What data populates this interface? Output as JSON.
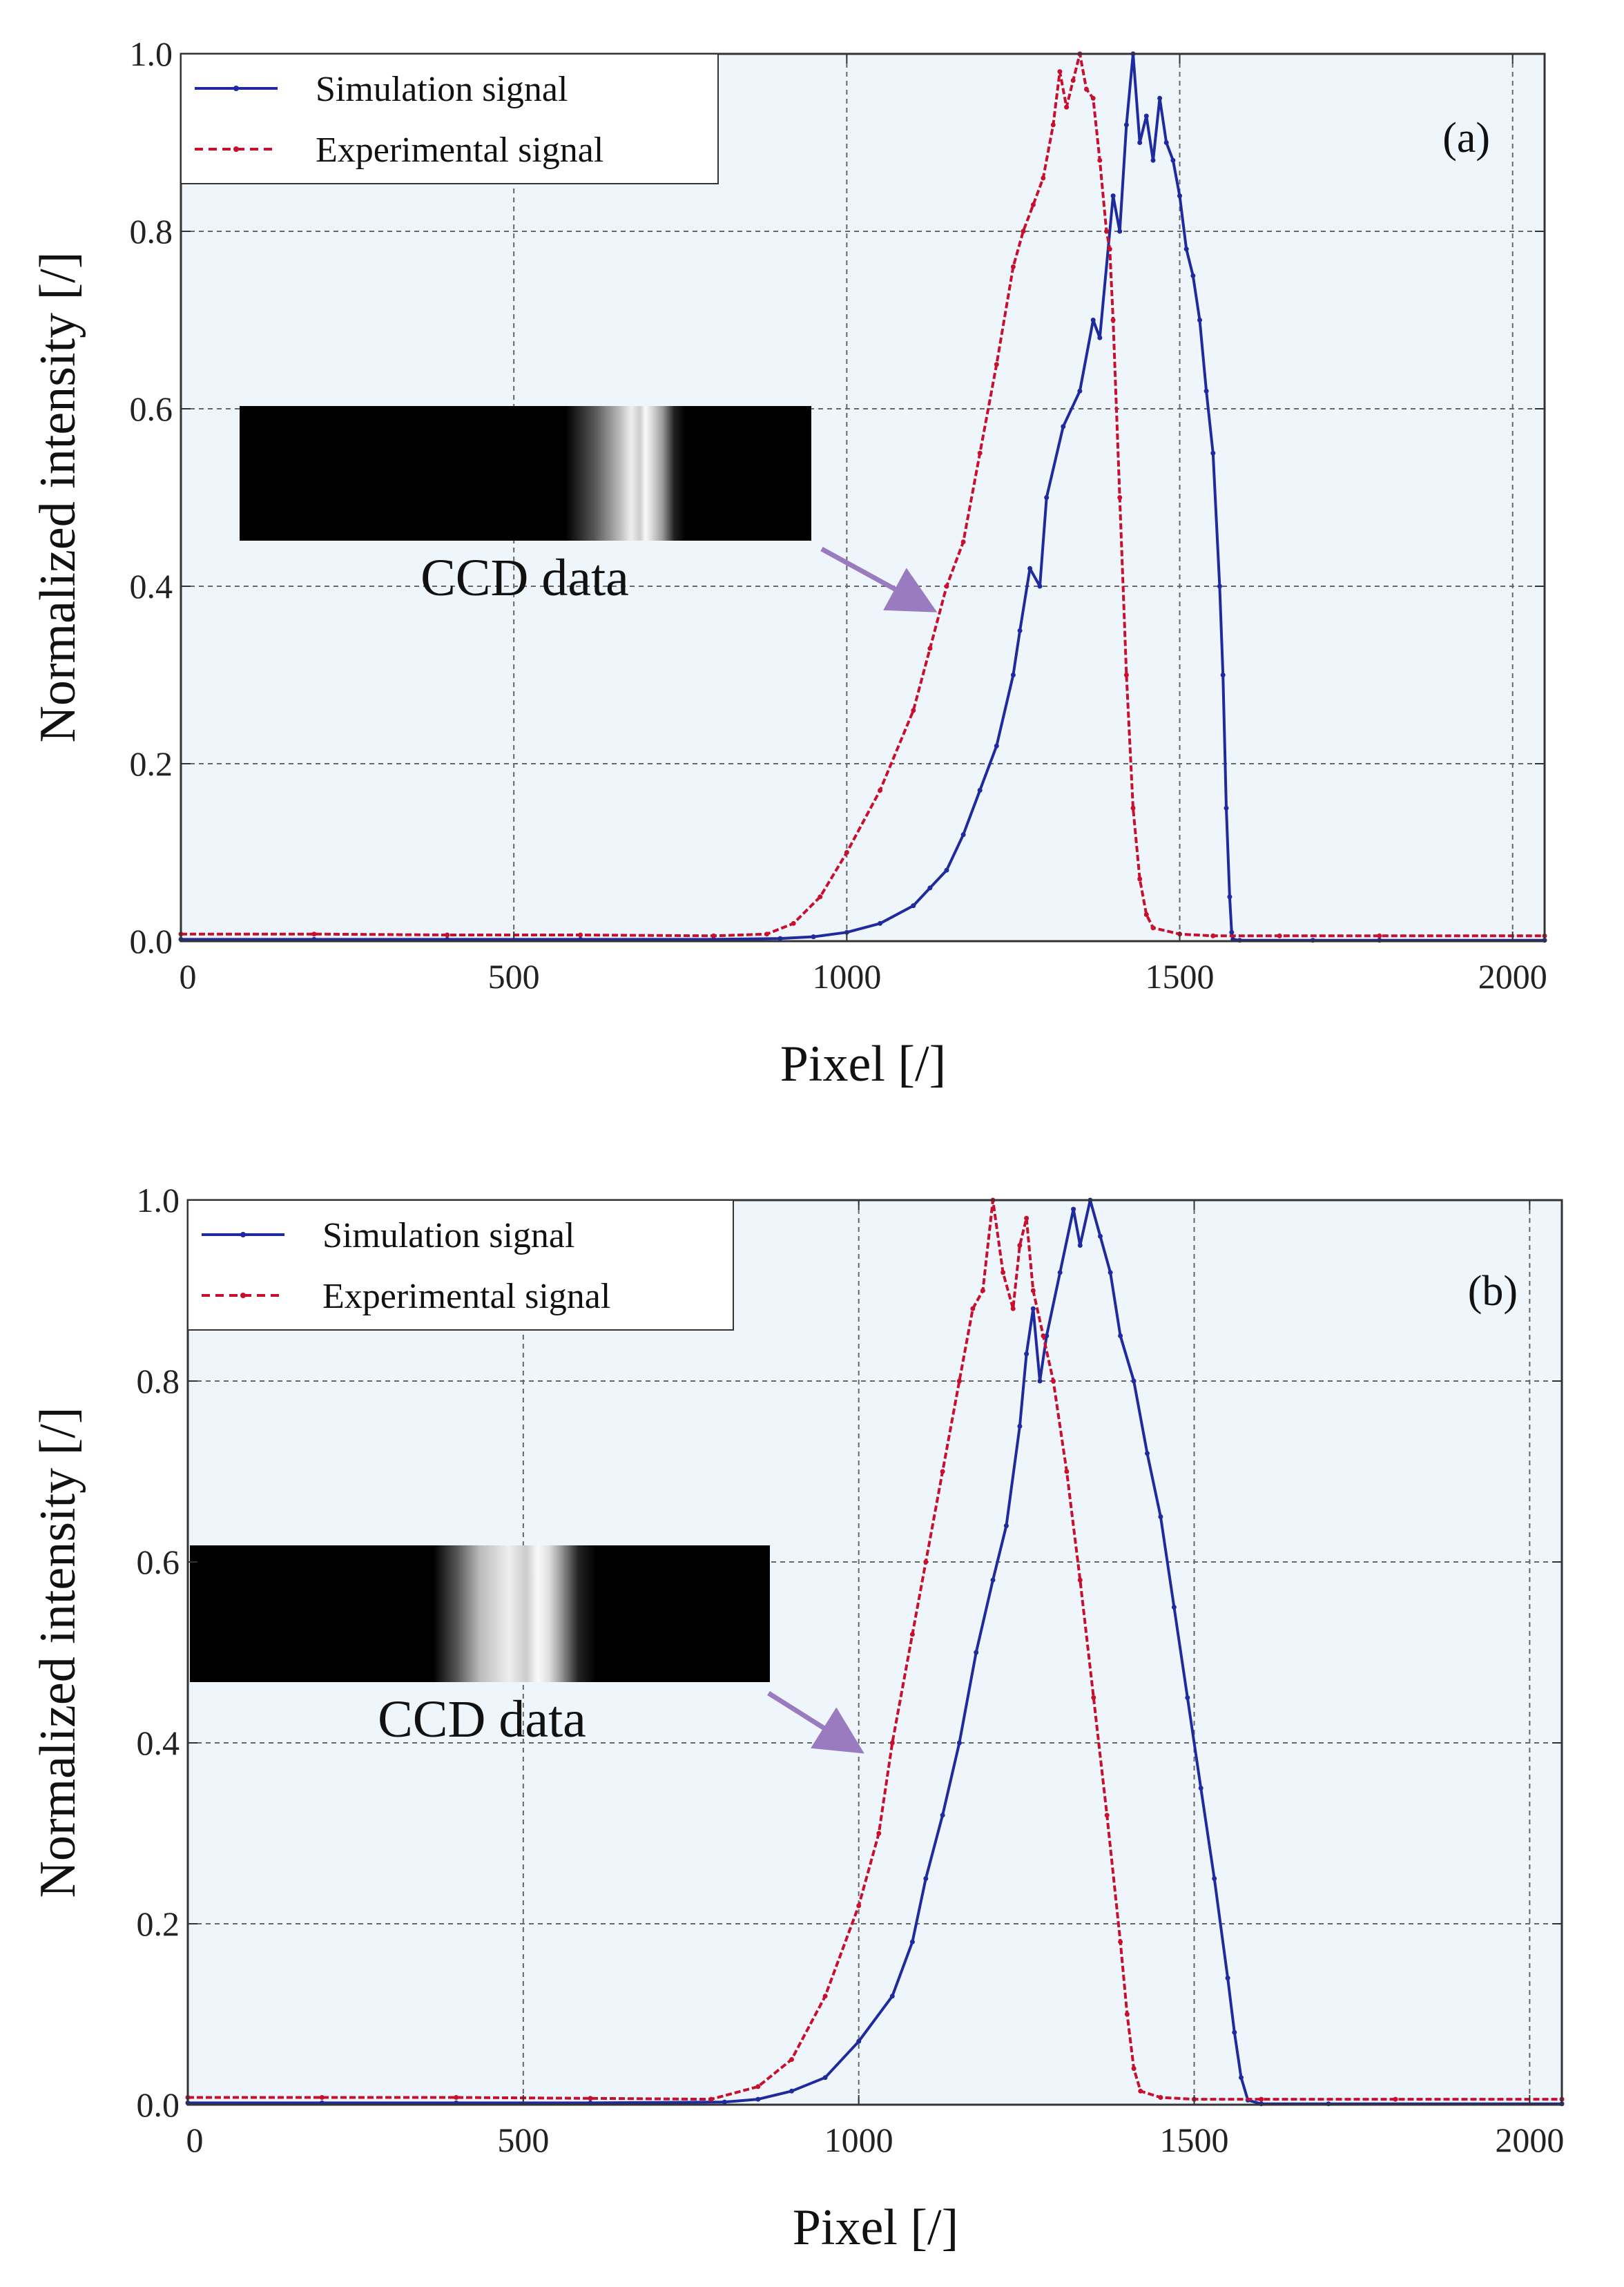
{
  "colors": {
    "simulation": "#1f2a9e",
    "experimental": "#c8102e",
    "plot_bg": "#eef6fb",
    "grid": "#666666",
    "arrow": "#9a7bbf"
  },
  "chart_data": [
    {
      "type": "line",
      "panel_label": "(a)",
      "xlabel": "Pixel [/]",
      "ylabel": "Normalized intensity [/]",
      "xlim": [
        0,
        2048
      ],
      "ylim": [
        0,
        1.0
      ],
      "xticks": [
        0,
        500,
        1000,
        1500,
        2000
      ],
      "xtick_labels": [
        "0",
        "500",
        "1000",
        "1500",
        "2000"
      ],
      "yticks": [
        0,
        0.2,
        0.4,
        0.6,
        0.8,
        1.0
      ],
      "ytick_labels": [
        "0.0",
        "0.2",
        "0.4",
        "0.6",
        "0.8",
        "1.0"
      ],
      "grid": true,
      "legend_position": "top-left",
      "inset": {
        "text": "CCD data",
        "bands": [
          0.57,
          0.62,
          0.665,
          0.685,
          0.7,
          0.71,
          0.72,
          0.74,
          0.76,
          0.78
        ]
      },
      "series": [
        {
          "name": "Simulation signal",
          "style": "solid",
          "x": [
            0,
            200,
            400,
            600,
            800,
            900,
            950,
            1000,
            1050,
            1100,
            1125,
            1150,
            1175,
            1200,
            1225,
            1250,
            1260,
            1275,
            1290,
            1300,
            1325,
            1350,
            1370,
            1380,
            1400,
            1410,
            1420,
            1430,
            1440,
            1450,
            1460,
            1470,
            1480,
            1490,
            1500,
            1510,
            1520,
            1530,
            1540,
            1550,
            1560,
            1565,
            1570,
            1575,
            1578,
            1580,
            1590,
            1700,
            1800,
            2048
          ],
          "y": [
            0.002,
            0.002,
            0.002,
            0.002,
            0.002,
            0.003,
            0.005,
            0.01,
            0.02,
            0.04,
            0.06,
            0.08,
            0.12,
            0.17,
            0.22,
            0.3,
            0.35,
            0.42,
            0.4,
            0.5,
            0.58,
            0.62,
            0.7,
            0.68,
            0.84,
            0.8,
            0.92,
            1.0,
            0.9,
            0.93,
            0.88,
            0.95,
            0.9,
            0.88,
            0.84,
            0.78,
            0.75,
            0.7,
            0.62,
            0.55,
            0.4,
            0.3,
            0.15,
            0.05,
            0.01,
            0.002,
            0.001,
            0.001,
            0.001,
            0.001
          ]
        },
        {
          "name": "Experimental signal",
          "style": "dashed",
          "x": [
            0,
            200,
            400,
            600,
            800,
            880,
            920,
            960,
            1000,
            1050,
            1100,
            1125,
            1150,
            1175,
            1200,
            1225,
            1250,
            1265,
            1280,
            1295,
            1310,
            1320,
            1330,
            1340,
            1350,
            1360,
            1370,
            1380,
            1390,
            1395,
            1400,
            1410,
            1420,
            1430,
            1440,
            1450,
            1460,
            1500,
            1550,
            1650,
            1800,
            2048
          ],
          "y": [
            0.008,
            0.008,
            0.007,
            0.007,
            0.006,
            0.008,
            0.02,
            0.05,
            0.1,
            0.17,
            0.26,
            0.33,
            0.4,
            0.45,
            0.55,
            0.65,
            0.76,
            0.8,
            0.83,
            0.86,
            0.92,
            0.98,
            0.94,
            0.97,
            1.0,
            0.96,
            0.95,
            0.88,
            0.8,
            0.78,
            0.7,
            0.5,
            0.3,
            0.15,
            0.07,
            0.03,
            0.015,
            0.008,
            0.006,
            0.006,
            0.006,
            0.006
          ]
        }
      ]
    },
    {
      "type": "line",
      "panel_label": "(b)",
      "xlabel": "Pixel [/]",
      "ylabel": "Normalized intensity [/]",
      "xlim": [
        0,
        2048
      ],
      "ylim": [
        0,
        1.0
      ],
      "xticks": [
        0,
        500,
        1000,
        1500,
        2000
      ],
      "xtick_labels": [
        "0",
        "500",
        "1000",
        "1500",
        "2000"
      ],
      "yticks": [
        0,
        0.2,
        0.4,
        0.6,
        0.8,
        1.0
      ],
      "ytick_labels": [
        "0.0",
        "0.2",
        "0.4",
        "0.6",
        "0.8",
        "1.0"
      ],
      "grid": true,
      "legend_position": "top-left",
      "inset": {
        "text": "CCD data",
        "bands": [
          0.42,
          0.46,
          0.5,
          0.55,
          0.58,
          0.6,
          0.62,
          0.64,
          0.67,
          0.7
        ]
      },
      "series": [
        {
          "name": "Simulation signal",
          "style": "solid",
          "x": [
            0,
            200,
            400,
            600,
            800,
            850,
            900,
            950,
            1000,
            1050,
            1080,
            1100,
            1125,
            1150,
            1175,
            1200,
            1220,
            1240,
            1250,
            1260,
            1270,
            1280,
            1300,
            1320,
            1330,
            1345,
            1360,
            1375,
            1390,
            1410,
            1430,
            1450,
            1470,
            1490,
            1510,
            1530,
            1550,
            1560,
            1570,
            1580,
            1600,
            1700,
            2048
          ],
          "y": [
            0.002,
            0.002,
            0.002,
            0.002,
            0.003,
            0.006,
            0.015,
            0.03,
            0.07,
            0.12,
            0.18,
            0.25,
            0.32,
            0.4,
            0.5,
            0.58,
            0.64,
            0.75,
            0.83,
            0.88,
            0.8,
            0.85,
            0.92,
            0.99,
            0.95,
            1.0,
            0.96,
            0.92,
            0.85,
            0.8,
            0.72,
            0.65,
            0.55,
            0.45,
            0.35,
            0.25,
            0.14,
            0.08,
            0.03,
            0.005,
            0.001,
            0.001,
            0.001
          ]
        },
        {
          "name": "Experimental signal",
          "style": "dashed",
          "x": [
            0,
            200,
            400,
            600,
            780,
            850,
            900,
            950,
            1000,
            1030,
            1050,
            1080,
            1100,
            1125,
            1150,
            1170,
            1185,
            1200,
            1215,
            1230,
            1240,
            1250,
            1260,
            1275,
            1290,
            1310,
            1330,
            1350,
            1370,
            1390,
            1400,
            1410,
            1420,
            1450,
            1500,
            1600,
            1800,
            2048
          ],
          "y": [
            0.008,
            0.008,
            0.008,
            0.007,
            0.006,
            0.02,
            0.05,
            0.12,
            0.22,
            0.3,
            0.4,
            0.52,
            0.6,
            0.7,
            0.8,
            0.88,
            0.9,
            1.0,
            0.92,
            0.88,
            0.95,
            0.98,
            0.9,
            0.85,
            0.8,
            0.7,
            0.58,
            0.45,
            0.32,
            0.18,
            0.1,
            0.04,
            0.015,
            0.008,
            0.006,
            0.006,
            0.006,
            0.006
          ]
        }
      ]
    }
  ]
}
